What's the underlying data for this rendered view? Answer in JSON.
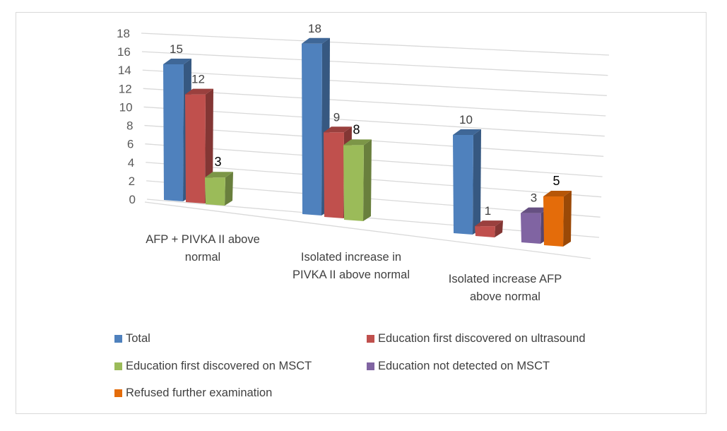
{
  "chart_data": {
    "type": "bar",
    "style": "3d-clustered-column",
    "title": "",
    "xlabel": "",
    "ylabel": "",
    "ylim": [
      0,
      18
    ],
    "yticks": [
      0,
      2,
      4,
      6,
      8,
      10,
      12,
      14,
      16,
      18
    ],
    "grid": true,
    "legend_position": "bottom",
    "categories": [
      [
        "AFP + PIVKA II above",
        "normal"
      ],
      [
        "Isolated increase in",
        "PIVKA II above normal"
      ],
      [
        "Isolated increase  AFP",
        "above normal"
      ]
    ],
    "series": [
      {
        "name": "Total",
        "color": "#4f81bd",
        "values": [
          15,
          18,
          10
        ]
      },
      {
        "name": "Education first discovered on ultrasound",
        "color": "#c0504d",
        "values": [
          12,
          9,
          1
        ]
      },
      {
        "name": "Education first discovered on MSCT",
        "color": "#9bbb59",
        "values": [
          3,
          8,
          null
        ]
      },
      {
        "name": "Education not detected on MSCT",
        "color": "#8064a2",
        "values": [
          null,
          null,
          3
        ]
      },
      {
        "name": "Refused further examination",
        "color": "#e46c0a",
        "values": [
          null,
          null,
          5
        ]
      }
    ]
  }
}
